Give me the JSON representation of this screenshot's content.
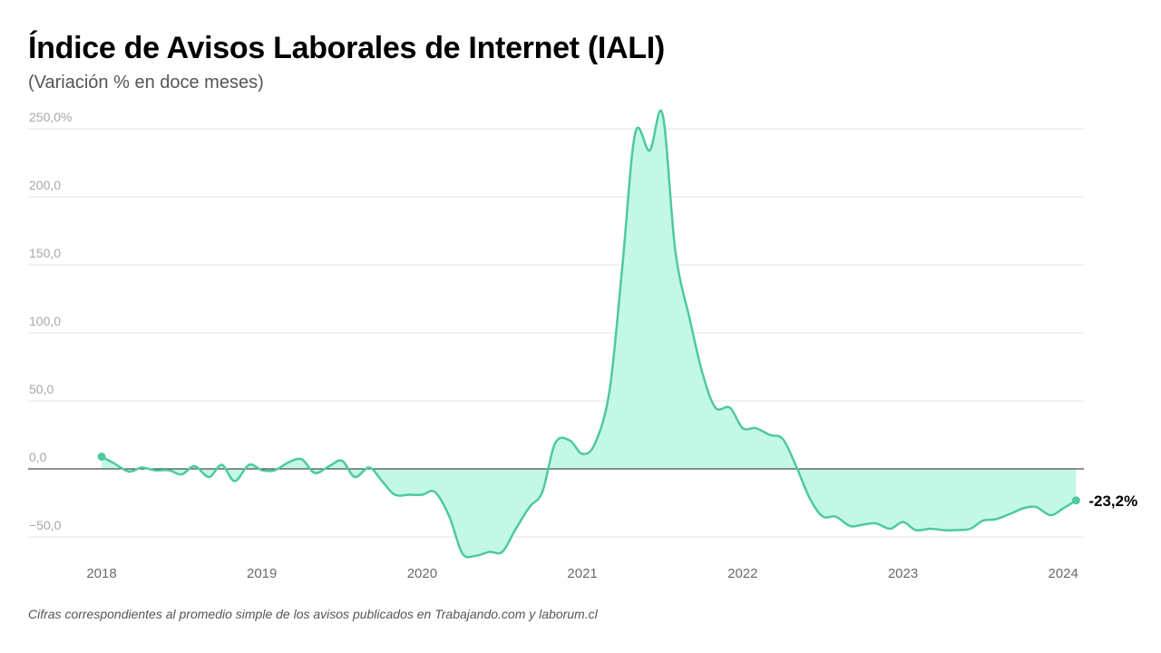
{
  "header": {
    "title": "Índice de Avisos Laborales de Internet (IALI)",
    "subtitle": "(Variación % en doce meses)"
  },
  "footnote": "Cifras correspondientes al promedio simple de los avisos publicados en Trabajando.com y laborum.cl",
  "colors": {
    "line": "#4ec9a0",
    "fill": "#c4f8e6",
    "grid": "#e6e6e6",
    "zero_line": "#222222"
  },
  "chart_data": {
    "type": "area",
    "title": "Índice de Avisos Laborales de Internet (IALI)",
    "subtitle": "(Variación % en doce meses)",
    "xlabel": "",
    "ylabel": "",
    "xlim": [
      2018.0,
      2024.1
    ],
    "ylim": [
      -65,
      255
    ],
    "y_ticks": [
      -50,
      0,
      50,
      100,
      150,
      200,
      250
    ],
    "y_tick_labels": [
      "−50,0",
      "0,0",
      "50,0",
      "100,0",
      "150,0",
      "200,0",
      "250,0%"
    ],
    "x_ticks": [
      2018,
      2019,
      2020,
      2021,
      2022,
      2023,
      2024
    ],
    "x_tick_labels": [
      "2018",
      "2019",
      "2020",
      "2021",
      "2022",
      "2023",
      "2024"
    ],
    "grid": true,
    "legend": "none",
    "last_point_label": "-23,2%",
    "series": [
      {
        "x": [
          2018.0,
          2018.08,
          2018.17,
          2018.25,
          2018.33,
          2018.42,
          2018.5,
          2018.58,
          2018.67,
          2018.75,
          2018.83,
          2018.92,
          2019.0,
          2019.08,
          2019.17,
          2019.25,
          2019.33,
          2019.42,
          2019.5,
          2019.58,
          2019.67,
          2019.75,
          2019.83,
          2019.92,
          2020.0,
          2020.08,
          2020.17,
          2020.25,
          2020.33,
          2020.42,
          2020.5,
          2020.58,
          2020.67,
          2020.75,
          2020.83,
          2020.92,
          2021.0,
          2021.08,
          2021.17,
          2021.25,
          2021.33,
          2021.42,
          2021.5,
          2021.58,
          2021.67,
          2021.75,
          2021.83,
          2021.92,
          2022.0,
          2022.08,
          2022.17,
          2022.25,
          2022.33,
          2022.42,
          2022.5,
          2022.58,
          2022.67,
          2022.75,
          2022.83,
          2022.92,
          2023.0,
          2023.08,
          2023.17,
          2023.25,
          2023.33,
          2023.42,
          2023.5,
          2023.58,
          2023.67,
          2023.75,
          2023.83,
          2023.92,
          2024.0,
          2024.08
        ],
        "values": [
          9,
          4,
          -2,
          1,
          -1,
          -1,
          -4,
          2,
          -6,
          3,
          -9,
          3,
          -1,
          -1,
          5,
          7,
          -3,
          2,
          6,
          -6,
          1,
          -9,
          -19,
          -19,
          -19,
          -17,
          -35,
          -62,
          -64,
          -61,
          -61,
          -45,
          -28,
          -17,
          19,
          21,
          11,
          19,
          58,
          150,
          247,
          234,
          261,
          160,
          110,
          70,
          45,
          45,
          30,
          30,
          25,
          22,
          3,
          -22,
          -35,
          -35,
          -42,
          -41,
          -40,
          -44,
          -39,
          -45,
          -44,
          -45,
          -45,
          -44,
          -38,
          -37,
          -33,
          -29,
          -28,
          -34,
          -29,
          -23.2
        ]
      }
    ]
  }
}
